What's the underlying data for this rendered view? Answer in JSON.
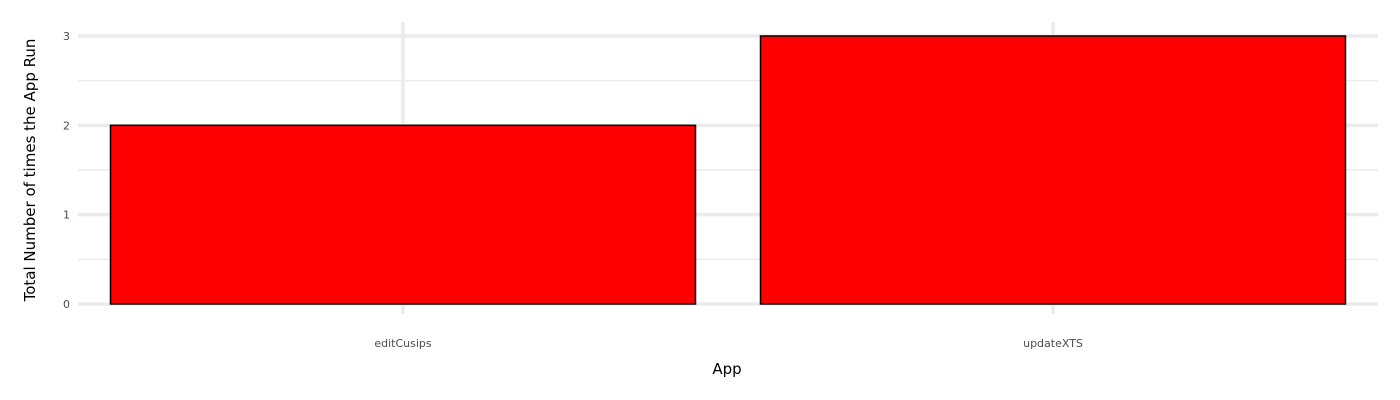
{
  "chart_data": {
    "type": "bar",
    "categories": [
      "editCusips",
      "updateXTS"
    ],
    "values": [
      2,
      3
    ],
    "title": "",
    "xlabel": "App",
    "ylabel": "Total Number of times the App Run",
    "ylim": [
      0,
      3.15
    ],
    "yticks": [
      0,
      1,
      2,
      3
    ],
    "grid": true,
    "colors": {
      "bar_fill": "#ff0000",
      "bar_stroke": "#000000",
      "grid_major": "#ebebeb",
      "grid_minor": "#ebebeb"
    }
  }
}
